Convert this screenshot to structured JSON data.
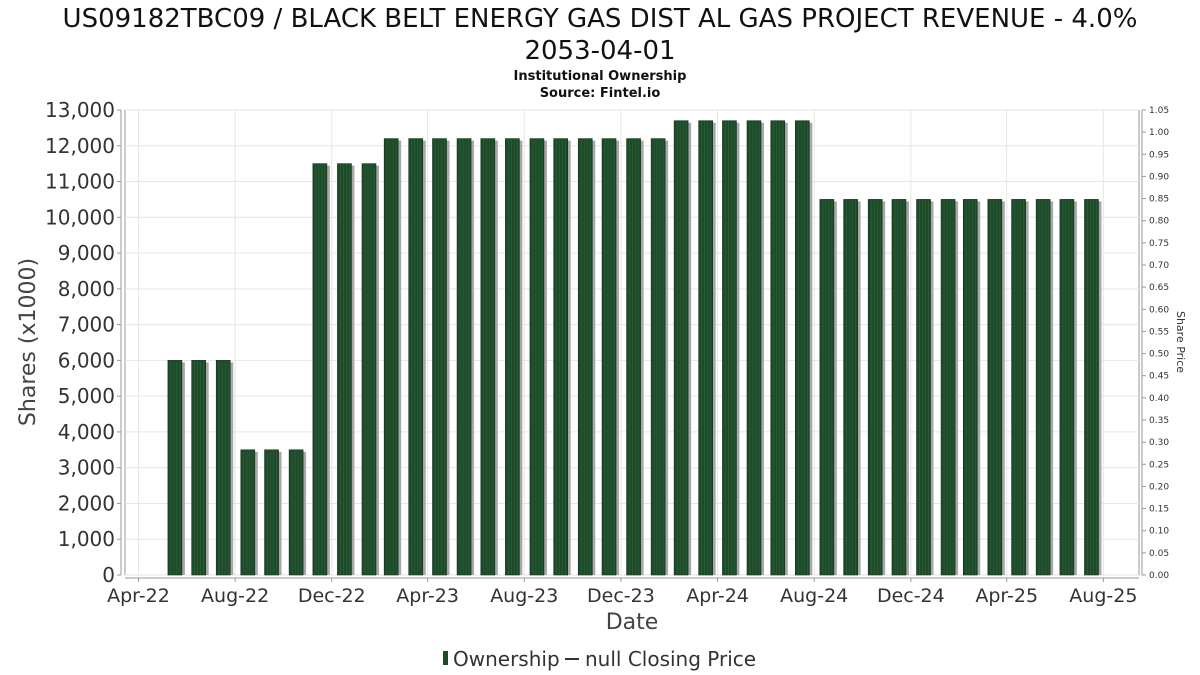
{
  "chart_data": {
    "type": "bar",
    "title_line1": "US09182TBC09 / BLACK BELT ENERGY GAS DIST AL GAS PROJECT REVENUE - 4.0%",
    "title_line2": "2053-04-01",
    "subtitle_line1": "Institutional Ownership",
    "subtitle_line2": "Source: Fintel.io",
    "xlabel": "Date",
    "ylabel": "Shares (x1000)",
    "y2label": "Share Price",
    "ylim": [
      0,
      13000
    ],
    "y_ticks": [
      "0",
      "1,000",
      "2,000",
      "3,000",
      "4,000",
      "5,000",
      "6,000",
      "7,000",
      "8,000",
      "9,000",
      "10,000",
      "11,000",
      "12,000",
      "13,000"
    ],
    "y2lim": [
      0,
      1.05
    ],
    "y2_ticks": [
      "0.00",
      "0.05",
      "0.10",
      "0.15",
      "0.20",
      "0.25",
      "0.30",
      "0.35",
      "0.40",
      "0.45",
      "0.50",
      "0.55",
      "0.60",
      "0.65",
      "0.70",
      "0.75",
      "0.80",
      "0.85",
      "0.90",
      "0.95",
      "1.00",
      "1.05"
    ],
    "x_ticks": [
      "Apr-22",
      "Aug-22",
      "Dec-22",
      "Apr-23",
      "Aug-23",
      "Dec-23",
      "Apr-24",
      "Aug-24",
      "Dec-24",
      "Apr-25",
      "Aug-25"
    ],
    "x_start": "2022-03-15",
    "x_end": "2025-09-15",
    "grid": true,
    "legend_position": "bottom",
    "legend": [
      {
        "label": "Ownership",
        "marker": "bar"
      },
      {
        "label": "null Closing Price",
        "marker": "line"
      }
    ],
    "series": [
      {
        "name": "Ownership",
        "color": "#1e4a2a",
        "x": [
          "2022-06",
          "2022-07",
          "2022-08",
          "2022-09",
          "2022-10",
          "2022-11",
          "2022-12",
          "2023-01",
          "2023-02",
          "2023-03",
          "2023-04",
          "2023-05",
          "2023-06",
          "2023-07",
          "2023-08",
          "2023-09",
          "2023-10",
          "2023-11",
          "2023-12",
          "2024-01",
          "2024-02",
          "2024-03",
          "2024-04",
          "2024-05",
          "2024-06",
          "2024-07",
          "2024-08",
          "2024-09",
          "2024-10",
          "2024-11",
          "2024-12",
          "2025-01",
          "2025-02",
          "2025-03",
          "2025-04",
          "2025-05",
          "2025-06",
          "2025-07",
          "2025-08"
        ],
        "values": [
          6000,
          6000,
          6000,
          3500,
          3500,
          3500,
          11500,
          11500,
          11500,
          12200,
          12200,
          12200,
          12200,
          12200,
          12200,
          12200,
          12200,
          12200,
          12200,
          12200,
          12200,
          12700,
          12700,
          12700,
          12700,
          12700,
          12700,
          10500,
          10500,
          10500,
          10500,
          10500,
          10500,
          10500,
          10500,
          10500,
          10500,
          10500,
          10500
        ]
      }
    ]
  }
}
